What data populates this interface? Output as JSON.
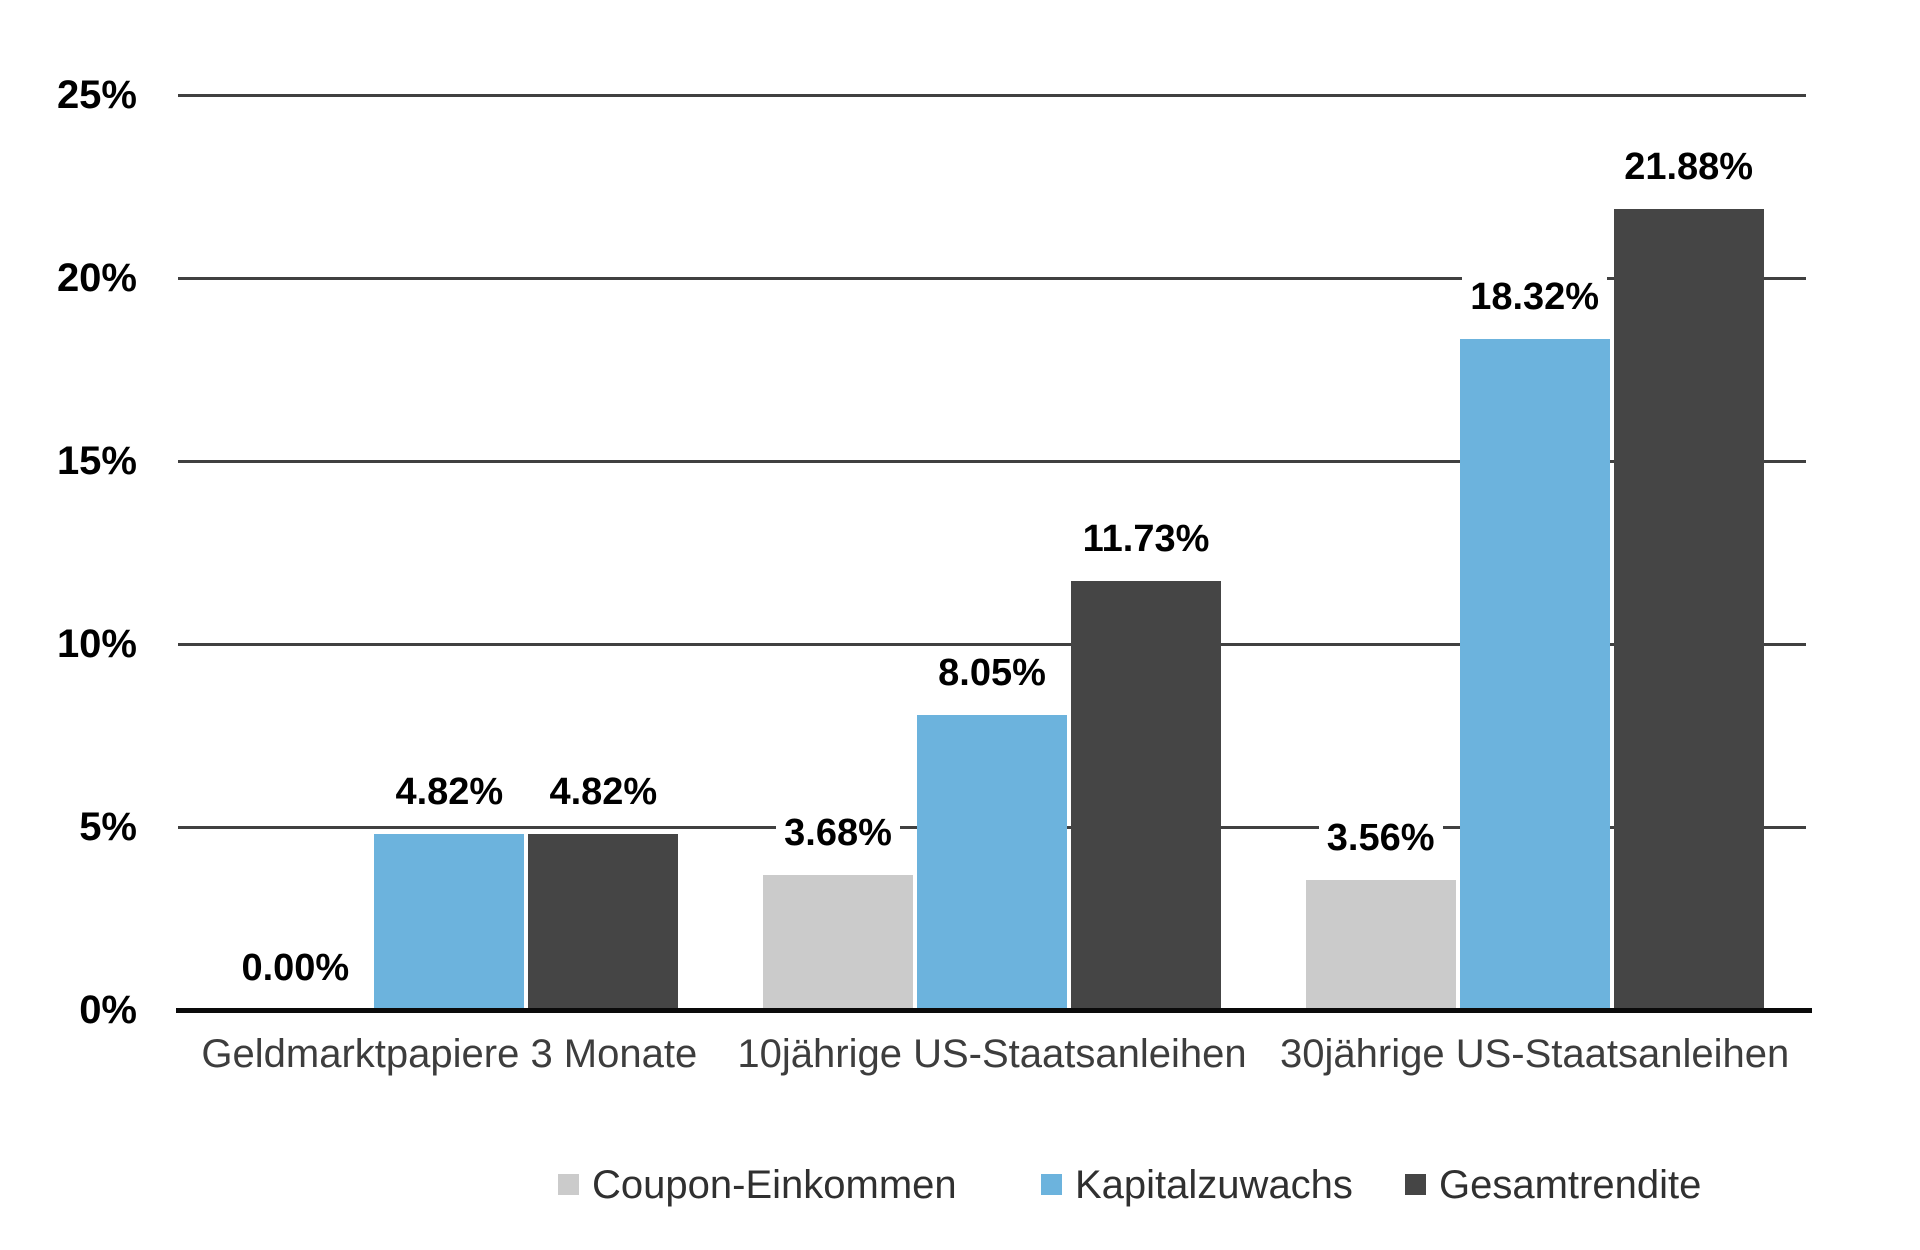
{
  "chart_data": {
    "type": "bar",
    "categories": [
      "Geldmarktpapiere 3 Monate",
      "10jährige US-Staatsanleihen",
      "30jährige US-Staatsanleihen"
    ],
    "series": [
      {
        "name": "Coupon-Einkommen",
        "color": "#CBCBCB",
        "values": [
          0.0,
          3.68,
          3.56
        ],
        "labels": [
          "0.00%",
          "3.68%",
          "3.56%"
        ]
      },
      {
        "name": "Kapitalzuwachs",
        "color": "#6CB3DD",
        "values": [
          4.82,
          8.05,
          18.32
        ],
        "labels": [
          "4.82%",
          "8.05%",
          "18.32%"
        ]
      },
      {
        "name": "Gesamtrendite",
        "color": "#454545",
        "values": [
          4.82,
          11.73,
          21.88
        ],
        "labels": [
          "4.82%",
          "11.73%",
          "21.88%"
        ]
      }
    ],
    "y_axis": {
      "tick_labels": [
        "0%",
        "5%",
        "10%",
        "15%",
        "20%",
        "25%"
      ],
      "min": 0,
      "max": 25,
      "step": 5
    },
    "grid": true,
    "legend_position": "bottom"
  }
}
